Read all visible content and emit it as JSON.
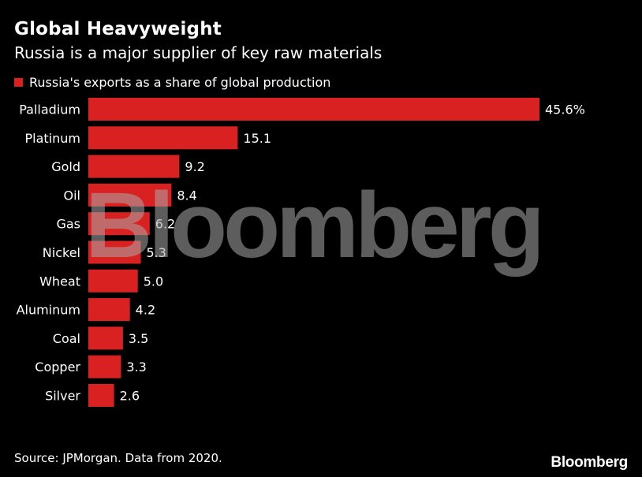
{
  "header": {
    "title": "Global Heavyweight",
    "subtitle": "Russia is a major supplier of key raw materials"
  },
  "legend": {
    "label": "Russia's exports as a share of global production"
  },
  "footer": {
    "source": "Source: JPMorgan. Data from 2020.",
    "logo": "Bloomberg"
  },
  "watermark": "Bloomberg",
  "colors": {
    "bar": "#d92121",
    "background": "#000000",
    "text": "#ffffff"
  },
  "chart_data": {
    "type": "bar",
    "orientation": "horizontal",
    "categories": [
      "Palladium",
      "Platinum",
      "Gold",
      "Oil",
      "Gas",
      "Nickel",
      "Wheat",
      "Aluminum",
      "Coal",
      "Copper",
      "Silver"
    ],
    "values": [
      45.6,
      15.1,
      9.2,
      8.4,
      6.2,
      5.3,
      5.0,
      4.2,
      3.5,
      3.3,
      2.6
    ],
    "value_labels": [
      "45.6%",
      "15.1",
      "9.2",
      "8.4",
      "6.2",
      "5.3",
      "5.0",
      "4.2",
      "3.5",
      "3.3",
      "2.6"
    ],
    "series": [
      {
        "name": "Russia's exports as a share of global production",
        "values": [
          45.6,
          15.1,
          9.2,
          8.4,
          6.2,
          5.3,
          5.0,
          4.2,
          3.5,
          3.3,
          2.6
        ]
      }
    ],
    "xlim": [
      0,
      45.6
    ],
    "grid": false,
    "legend_position": "top-left"
  }
}
